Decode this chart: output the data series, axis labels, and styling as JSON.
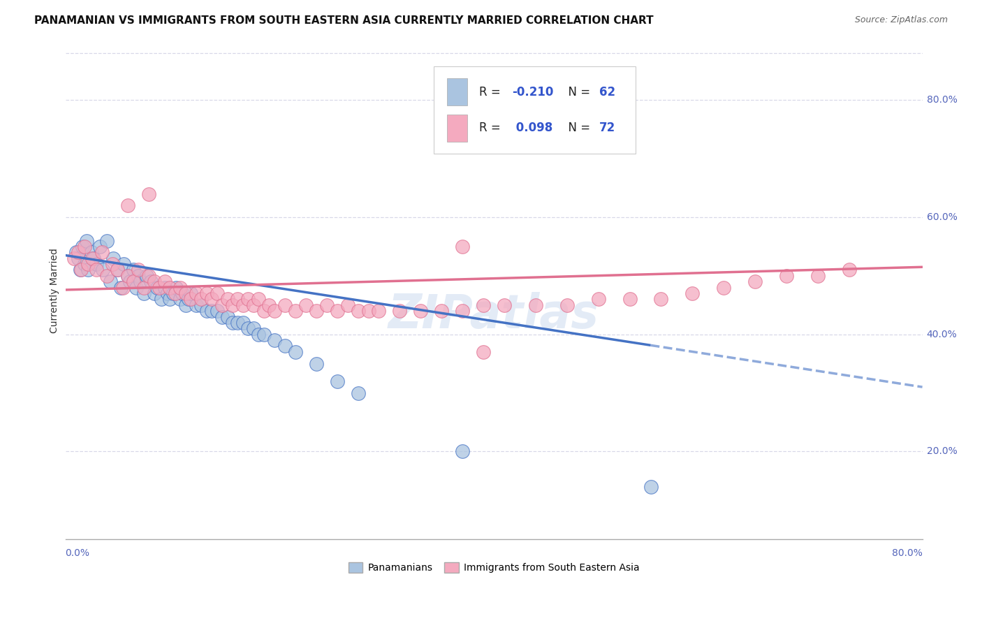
{
  "title": "PANAMANIAN VS IMMIGRANTS FROM SOUTH EASTERN ASIA CURRENTLY MARRIED CORRELATION CHART",
  "source": "Source: ZipAtlas.com",
  "ylabel": "Currently Married",
  "xlim": [
    0.0,
    0.82
  ],
  "ylim": [
    0.05,
    0.9
  ],
  "yticks": [
    0.2,
    0.4,
    0.6,
    0.8
  ],
  "ytick_labels": [
    "20.0%",
    "40.0%",
    "60.0%",
    "80.0%"
  ],
  "xtick_left": "0.0%",
  "xtick_right": "80.0%",
  "blue_R": -0.21,
  "blue_N": 62,
  "pink_R": 0.098,
  "pink_N": 72,
  "blue_scatter_color": "#aac4e0",
  "blue_line_color": "#4472c4",
  "pink_scatter_color": "#f4aabf",
  "pink_line_color": "#e07090",
  "background_color": "#ffffff",
  "grid_color": "#d8d8e8",
  "title_fontsize": 11,
  "tick_label_fontsize": 10,
  "legend_fontsize": 12,
  "source_fontsize": 9,
  "blue_scatter_x": [
    0.01,
    0.012,
    0.014,
    0.016,
    0.018,
    0.02,
    0.022,
    0.025,
    0.027,
    0.03,
    0.033,
    0.036,
    0.04,
    0.043,
    0.046,
    0.05,
    0.053,
    0.056,
    0.06,
    0.062,
    0.065,
    0.068,
    0.07,
    0.072,
    0.075,
    0.078,
    0.082,
    0.085,
    0.088,
    0.092,
    0.095,
    0.098,
    0.1,
    0.103,
    0.106,
    0.11,
    0.112,
    0.115,
    0.118,
    0.12,
    0.125,
    0.13,
    0.135,
    0.14,
    0.145,
    0.15,
    0.155,
    0.16,
    0.165,
    0.17,
    0.175,
    0.18,
    0.185,
    0.19,
    0.2,
    0.21,
    0.22,
    0.24,
    0.26,
    0.28,
    0.38,
    0.56
  ],
  "blue_scatter_y": [
    0.54,
    0.53,
    0.51,
    0.55,
    0.52,
    0.56,
    0.51,
    0.54,
    0.53,
    0.52,
    0.55,
    0.51,
    0.56,
    0.49,
    0.53,
    0.51,
    0.48,
    0.52,
    0.5,
    0.49,
    0.51,
    0.48,
    0.5,
    0.49,
    0.47,
    0.5,
    0.49,
    0.47,
    0.48,
    0.46,
    0.48,
    0.47,
    0.46,
    0.47,
    0.48,
    0.46,
    0.47,
    0.45,
    0.46,
    0.47,
    0.45,
    0.45,
    0.44,
    0.44,
    0.44,
    0.43,
    0.43,
    0.42,
    0.42,
    0.42,
    0.41,
    0.41,
    0.4,
    0.4,
    0.39,
    0.38,
    0.37,
    0.35,
    0.32,
    0.3,
    0.2,
    0.14
  ],
  "pink_scatter_x": [
    0.008,
    0.012,
    0.015,
    0.018,
    0.022,
    0.026,
    0.03,
    0.035,
    0.04,
    0.045,
    0.05,
    0.055,
    0.06,
    0.065,
    0.07,
    0.075,
    0.08,
    0.085,
    0.09,
    0.095,
    0.1,
    0.105,
    0.11,
    0.115,
    0.12,
    0.125,
    0.13,
    0.135,
    0.14,
    0.145,
    0.15,
    0.155,
    0.16,
    0.165,
    0.17,
    0.175,
    0.18,
    0.185,
    0.19,
    0.195,
    0.2,
    0.21,
    0.22,
    0.23,
    0.24,
    0.25,
    0.26,
    0.27,
    0.28,
    0.29,
    0.3,
    0.32,
    0.34,
    0.36,
    0.38,
    0.4,
    0.42,
    0.45,
    0.48,
    0.51,
    0.54,
    0.57,
    0.6,
    0.63,
    0.66,
    0.69,
    0.72,
    0.75,
    0.4,
    0.06,
    0.08,
    0.38
  ],
  "pink_scatter_y": [
    0.53,
    0.54,
    0.51,
    0.55,
    0.52,
    0.53,
    0.51,
    0.54,
    0.5,
    0.52,
    0.51,
    0.48,
    0.5,
    0.49,
    0.51,
    0.48,
    0.5,
    0.49,
    0.48,
    0.49,
    0.48,
    0.47,
    0.48,
    0.47,
    0.46,
    0.47,
    0.46,
    0.47,
    0.46,
    0.47,
    0.45,
    0.46,
    0.45,
    0.46,
    0.45,
    0.46,
    0.45,
    0.46,
    0.44,
    0.45,
    0.44,
    0.45,
    0.44,
    0.45,
    0.44,
    0.45,
    0.44,
    0.45,
    0.44,
    0.44,
    0.44,
    0.44,
    0.44,
    0.44,
    0.44,
    0.45,
    0.45,
    0.45,
    0.45,
    0.46,
    0.46,
    0.46,
    0.47,
    0.48,
    0.49,
    0.5,
    0.5,
    0.51,
    0.37,
    0.62,
    0.64,
    0.55
  ],
  "blue_line_x0": 0.0,
  "blue_line_y0": 0.535,
  "blue_line_x1": 0.82,
  "blue_line_y1": 0.31,
  "blue_line_solid_end": 0.56,
  "pink_line_x0": 0.0,
  "pink_line_y0": 0.476,
  "pink_line_x1": 0.82,
  "pink_line_y1": 0.515
}
